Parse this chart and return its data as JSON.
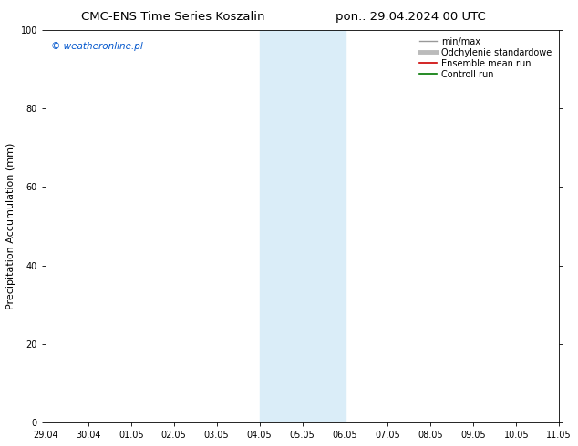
{
  "title_left": "CMC-ENS Time Series Koszalin",
  "title_right": "pon.. 29.04.2024 00 UTC",
  "ylabel": "Precipitation Accumulation (mm)",
  "watermark": "© weatheronline.pl",
  "watermark_color": "#0055cc",
  "ylim": [
    0,
    100
  ],
  "yticks": [
    0,
    20,
    40,
    60,
    80,
    100
  ],
  "x_ticks": [
    "29.04",
    "30.04",
    "01.05",
    "02.05",
    "03.05",
    "04.05",
    "05.05",
    "06.05",
    "07.05",
    "08.05",
    "09.05",
    "10.05",
    "11.05"
  ],
  "x_tick_positions": [
    0,
    1,
    2,
    3,
    4,
    5,
    6,
    7,
    8,
    9,
    10,
    11,
    12
  ],
  "shaded_region_start": 5,
  "shaded_region_end": 7,
  "shaded_color": "#daedf8",
  "legend_entries": [
    "min/max",
    "Odchylenie standardowe",
    "Ensemble mean run",
    "Controll run"
  ],
  "legend_line_colors": [
    "#999999",
    "#bbbbbb",
    "#cc0000",
    "#007700"
  ],
  "background_color": "#ffffff",
  "plot_bg_color": "#ffffff",
  "border_color": "#000000",
  "title_fontsize": 9.5,
  "tick_fontsize": 7,
  "ylabel_fontsize": 8,
  "legend_fontsize": 7,
  "watermark_fontsize": 7.5
}
